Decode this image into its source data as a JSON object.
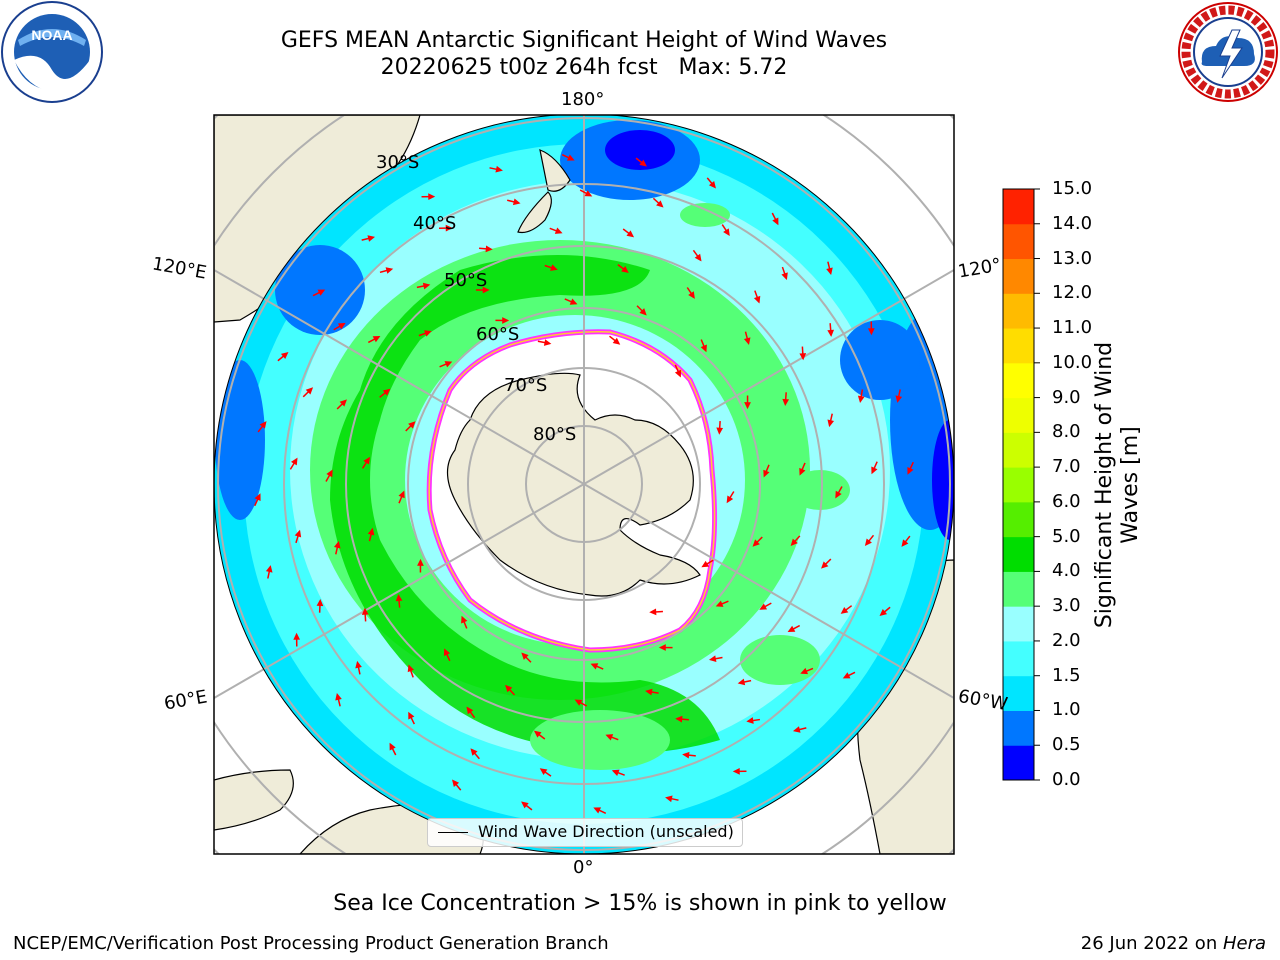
{
  "header": {
    "title_line1": "GEFS MEAN Antarctic Significant Height of Wind Waves",
    "title_line2": "20220625 t00z 264h fcst   Max: 5.72"
  },
  "map": {
    "projection": "south-polar-stereographic",
    "lon_labels": {
      "top": "180°",
      "bottom": "0°",
      "left_upper": "120°E",
      "left_lower": "60°E",
      "right_upper": "120°",
      "right_lower": "60°W"
    },
    "lat_labels": [
      "30°S",
      "40°S",
      "50°S",
      "60°S",
      "70°S",
      "80°S"
    ],
    "legend": "Wind Wave Direction (unscaled)",
    "colors": {
      "land": "#efecd9",
      "ice": "#ffffff",
      "ice_edge": "#ff33ff",
      "arrow": "#ff0000",
      "grid": "#b0b0b0"
    }
  },
  "colorbar": {
    "label": "Significant Height of Wind Waves [m]",
    "ticks": [
      "0.0",
      "0.5",
      "1.0",
      "1.5",
      "2.0",
      "3.0",
      "4.0",
      "5.0",
      "6.0",
      "7.0",
      "8.0",
      "9.0",
      "10.0",
      "11.0",
      "12.0",
      "13.0",
      "14.0",
      "15.0"
    ],
    "colors": [
      "#0000ff",
      "#0077ff",
      "#00e5ff",
      "#44ffff",
      "#99ffff",
      "#55ff77",
      "#00dd00",
      "#55ee00",
      "#99ff00",
      "#ccff00",
      "#eeff00",
      "#ffff00",
      "#ffdd00",
      "#ffbb00",
      "#ff8800",
      "#ff5500",
      "#ff2200"
    ]
  },
  "footer": {
    "note": "Sea Ice Concentration > 15% is shown in pink to yellow",
    "left": "NCEP/EMC/Verification Post Processing Product Generation Branch",
    "right_prefix": "26 Jun 2022 on ",
    "right_host": "Hera"
  },
  "logos": {
    "noaa": "NOAA",
    "nws": "NATIONAL WEATHER SERVICE"
  }
}
